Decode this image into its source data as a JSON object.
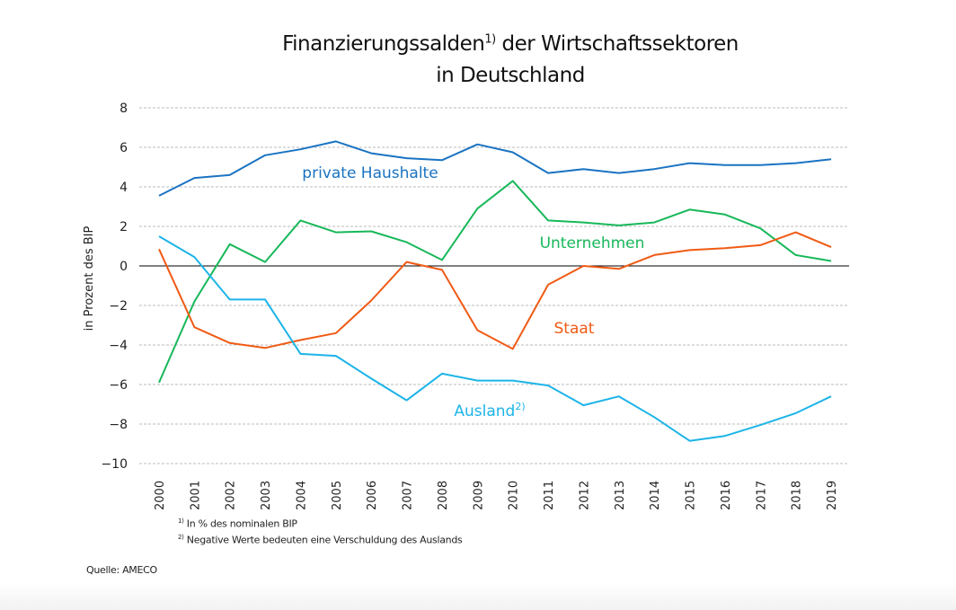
{
  "chart_data": {
    "type": "line",
    "title": {
      "line1": "Finanzierungssalden",
      "title_sup": "1)",
      "line1_rest": " der Wirtschaftssektoren",
      "line2": "in Deutschland"
    },
    "ylabel": "in Prozent des BIP",
    "xlabel": "",
    "ylim": [
      -10,
      8
    ],
    "yticks": [
      "8",
      "6",
      "4",
      "2",
      "0",
      "−2",
      "−4",
      "−6",
      "−8",
      "−10"
    ],
    "grid": true,
    "categories": [
      "2000",
      "2001",
      "2002",
      "2003",
      "2004",
      "2005",
      "2006",
      "2007",
      "2008",
      "2009",
      "2010",
      "2011",
      "2012",
      "2013",
      "2014",
      "2015",
      "2016",
      "2017",
      "2018",
      "2019"
    ],
    "series": [
      {
        "name": "private Haushalte",
        "sup": "",
        "color": "#1a73c2",
        "values": [
          3.55,
          4.45,
          4.6,
          5.6,
          5.9,
          6.3,
          5.7,
          5.45,
          5.35,
          6.15,
          5.75,
          4.7,
          4.9,
          4.7,
          4.9,
          5.2,
          5.1,
          5.1,
          5.2,
          5.4
        ]
      },
      {
        "name": "Unternehmen",
        "sup": "",
        "color": "#17b85a",
        "values": [
          -5.9,
          -1.8,
          1.1,
          0.2,
          2.3,
          1.7,
          1.75,
          1.2,
          0.3,
          2.9,
          4.3,
          2.3,
          2.2,
          2.05,
          2.2,
          2.85,
          2.6,
          1.9,
          0.55,
          0.25
        ]
      },
      {
        "name": "Staat",
        "sup": "",
        "color": "#f05a14",
        "values": [
          0.85,
          -3.1,
          -3.9,
          -4.15,
          -3.75,
          -3.4,
          -1.75,
          0.2,
          -0.2,
          -3.25,
          -4.2,
          -0.95,
          0.0,
          -0.15,
          0.55,
          0.8,
          0.9,
          1.05,
          1.7,
          0.95
        ]
      },
      {
        "name": "Ausland",
        "sup": "2)",
        "color": "#1cb4e8",
        "values": [
          1.5,
          0.45,
          -1.7,
          -1.7,
          -4.45,
          -4.55,
          -5.7,
          -6.8,
          -5.45,
          -5.8,
          -5.8,
          -6.05,
          -7.05,
          -6.6,
          -7.65,
          -8.85,
          -8.6,
          -8.05,
          -7.45,
          -6.6
        ]
      }
    ]
  },
  "footnotes": [
    {
      "sup": "1)",
      "text": "In % des nominalen BIP"
    },
    {
      "sup": "2)",
      "text": "Negative Werte bedeuten eine Verschuldung des Auslands"
    }
  ],
  "source": "Quelle: AMECO"
}
